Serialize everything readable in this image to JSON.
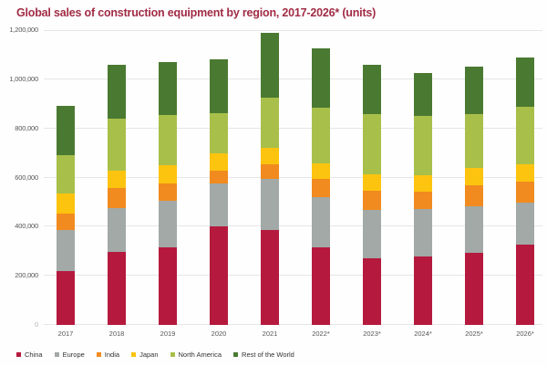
{
  "title": "Global sales of construction equipment by region, 2017-2026* (units)",
  "colors": {
    "title_text": "#a12c45",
    "gridline": "#e6e6e6",
    "axis_text": "#57575a",
    "china": "#b51a3e",
    "europe": "#a2a9a7",
    "india": "#f18b1f",
    "japan": "#fdc40f",
    "north_america": "#a8bf4a",
    "rest_of_world": "#4a7a31"
  },
  "chart_data": {
    "type": "bar",
    "stacked": true,
    "title": "Global sales of construction equipment by region, 2017-2026* (units)",
    "xlabel": "",
    "ylabel": "",
    "categories": [
      "2017",
      "2018",
      "2019",
      "2020",
      "2021",
      "2022*",
      "2023*",
      "2024*",
      "2025*",
      "2026*"
    ],
    "series": [
      {
        "name": "China",
        "color_key": "china",
        "values": [
          220000,
          296000,
          315000,
          400000,
          385000,
          315000,
          270000,
          278000,
          294000,
          327000
        ]
      },
      {
        "name": "Europe",
        "color_key": "europe",
        "values": [
          165000,
          180000,
          192000,
          175000,
          210000,
          205000,
          200000,
          195000,
          190000,
          172000
        ]
      },
      {
        "name": "India",
        "color_key": "india",
        "values": [
          70000,
          80000,
          70000,
          54000,
          58000,
          74000,
          78000,
          68000,
          84000,
          84000
        ]
      },
      {
        "name": "Japan",
        "color_key": "japan",
        "values": [
          80000,
          72000,
          74000,
          68000,
          66000,
          65000,
          65000,
          68000,
          70000,
          72000
        ]
      },
      {
        "name": "North America",
        "color_key": "north_america",
        "values": [
          155000,
          210000,
          203000,
          165000,
          207000,
          226000,
          244000,
          240000,
          221000,
          233000
        ]
      },
      {
        "name": "Rest of the World",
        "color_key": "rest_of_world",
        "values": [
          200000,
          222000,
          216000,
          218000,
          264000,
          240000,
          201000,
          176000,
          191000,
          200000
        ]
      }
    ],
    "totals": [
      890000,
      1060000,
      1070000,
      1080000,
      1190000,
      1125000,
      1058000,
      1025000,
      1050000,
      1088000
    ],
    "ylim": [
      0,
      1200000
    ],
    "yticks": [
      0,
      200000,
      400000,
      600000,
      800000,
      1000000,
      1200000
    ],
    "ytick_labels": [
      "0",
      "200,000",
      "400,000",
      "600,000",
      "800,000",
      "1,000,000",
      "1,200,000"
    ],
    "grid": true,
    "legend_position": "bottom-left",
    "legend_entries": [
      "China",
      "Europe",
      "India",
      "Japan",
      "North America",
      "Rest of the World"
    ]
  }
}
